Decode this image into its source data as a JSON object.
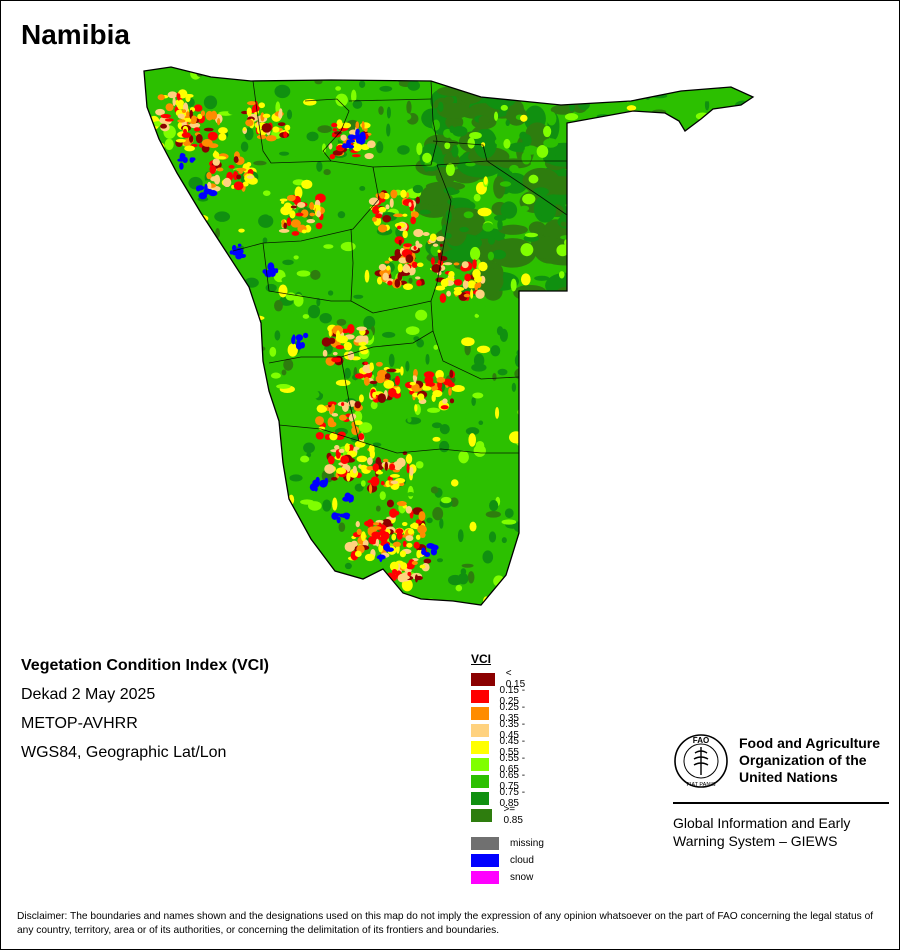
{
  "map_title": "Namibia",
  "info": {
    "product": "Vegetation Condition Index (VCI)",
    "period": "Dekad 2 May 2025",
    "sensor": "METOP-AVHRR",
    "projection": "WGS84, Geographic Lat/Lon"
  },
  "legend": {
    "title": "VCI",
    "classes": [
      {
        "label": "< 0.15",
        "color": "#8b0000"
      },
      {
        "label": "0.15 - 0.25",
        "color": "#ff0000"
      },
      {
        "label": "0.25 - 0.35",
        "color": "#ff8c00"
      },
      {
        "label": "0.35 - 0.45",
        "color": "#ffd27f"
      },
      {
        "label": "0.45 - 0.55",
        "color": "#ffff00"
      },
      {
        "label": "0.55 - 0.65",
        "color": "#80ff00"
      },
      {
        "label": "0.65 - 0.75",
        "color": "#2cc000"
      },
      {
        "label": "0.75 - 0.85",
        "color": "#109010"
      },
      {
        "label": ">= 0.85",
        "color": "#2e7d0e"
      }
    ],
    "other": [
      {
        "label": "missing",
        "color": "#707070"
      },
      {
        "label": "cloud",
        "color": "#0000ff"
      },
      {
        "label": "snow",
        "color": "#ff00ff"
      }
    ]
  },
  "organization": {
    "name_lines": [
      "Food and Agriculture",
      "Organization of the",
      "United Nations"
    ],
    "logo_text": "FAO",
    "logo_motto": "FIAT PANIS",
    "system_lines": [
      "Global Information and Early",
      "Warning System – GIEWS"
    ]
  },
  "disclaimer": "Disclaimer: The boundaries and names shown and the designations used on this map do not imply the expression of any opinion whatsoever on the part of FAO concerning the legal status of any country, territory, area or of its authorities, or concerning the delimitation of its frontiers and boundaries."
}
